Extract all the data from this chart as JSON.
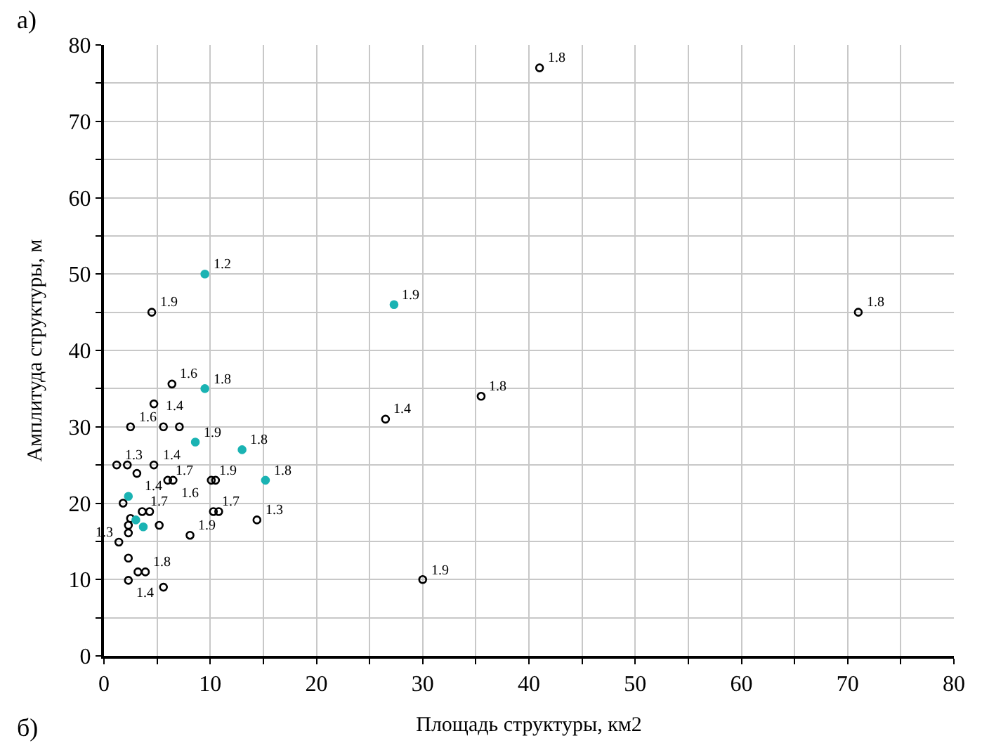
{
  "chart_data": {
    "type": "scatter",
    "xlabel": "Площадь структуры, км2",
    "ylabel": "Амплитуда структуры, м",
    "annotations": [
      "а)",
      "б)",
      {
        "text": "1.8",
        "x": 41,
        "y": 77
      },
      {
        "text": "1.8",
        "x": 71,
        "y": 45
      },
      {
        "text": "1.9",
        "x": 4.5,
        "y": 45
      },
      {
        "text": "1.4",
        "x": 26.5,
        "y": 31
      },
      {
        "text": "1.8",
        "x": 35.5,
        "y": 34
      },
      {
        "text": "1.9",
        "x": 30,
        "y": 10
      },
      {
        "text": "1.6",
        "x": 6.4,
        "y": 35.6
      },
      {
        "text": "1.4",
        "x": 4.7,
        "y": 33
      },
      {
        "text": "1.6",
        "x": 2.5,
        "y": 30
      },
      {
        "text": "1.3",
        "x": 1.2,
        "y": 25
      },
      {
        "text": "1.4",
        "x": 4.7,
        "y": 25
      },
      {
        "text": "1.4",
        "x": 3.1,
        "y": 23.9
      },
      {
        "text": "1.7",
        "x": 6.0,
        "y": 23
      },
      {
        "text": "1.6",
        "x": 6.5,
        "y": 23
      },
      {
        "text": "1.9",
        "x": 10.1,
        "y": 23
      },
      {
        "text": "1.7",
        "x": 3.6,
        "y": 18.9
      },
      {
        "text": "1.7",
        "x": 10.3,
        "y": 18.9
      },
      {
        "text": "1.9",
        "x": 8.1,
        "y": 15.8
      },
      {
        "text": "1.3",
        "x": 14.4,
        "y": 17.8
      },
      {
        "text": "1.3",
        "x": 1.4,
        "y": 14.9
      },
      {
        "text": "1.8",
        "x": 3.9,
        "y": 11
      },
      {
        "text": "1.4",
        "x": 2.3,
        "y": 9.9
      },
      {
        "text": "1.2",
        "x": 9.5,
        "y": 50
      },
      {
        "text": "1.9",
        "x": 27.3,
        "y": 46
      },
      {
        "text": "1.8",
        "x": 9.5,
        "y": 35
      },
      {
        "text": "1.9",
        "x": 8.6,
        "y": 28
      },
      {
        "text": "1.8",
        "x": 13.0,
        "y": 27
      },
      {
        "text": "1.8",
        "x": 15.2,
        "y": 23
      }
    ],
    "xlim": [
      0,
      80
    ],
    "ylim": [
      0,
      80
    ],
    "xticks": [
      0,
      {
        "value": 5,
        "label": null
      },
      10,
      {
        "value": 15,
        "label": null
      },
      20,
      {
        "value": 25,
        "label": null
      },
      30,
      {
        "value": 35,
        "label": null
      },
      40,
      {
        "value": 45,
        "label": null
      },
      50,
      {
        "value": 55,
        "label": null
      },
      60,
      {
        "value": 65,
        "label": null
      },
      70,
      {
        "value": 75,
        "label": null
      },
      80
    ],
    "yticks": [
      0,
      {
        "value": 5,
        "label": null
      },
      10,
      {
        "value": 15,
        "label": null
      },
      20,
      {
        "value": 25,
        "label": null
      },
      30,
      {
        "value": 35,
        "label": null
      },
      40,
      {
        "value": 45,
        "label": null
      },
      50,
      {
        "value": 55,
        "label": null
      },
      60,
      {
        "value": 65,
        "label": null
      },
      70,
      {
        "value": 75,
        "label": null
      },
      80
    ],
    "grid": true,
    "legend": false,
    "series": [
      {
        "color": "#000000",
        "marker": "circle-open",
        "x": [
          41,
          71,
          4.5,
          26.5,
          35.5,
          30,
          6.4,
          4.7,
          2.5,
          5.6,
          7.1,
          1.2,
          2.2,
          4.7,
          3.1,
          6.0,
          6.5,
          10.1,
          10.5,
          1.8,
          3.6,
          4.3,
          2.5,
          2.3,
          5.2,
          10.3,
          10.8,
          8.1,
          14.4,
          2.3,
          1.4,
          2.3,
          3.2,
          3.9,
          5.6,
          2.3
        ],
        "values": [
          77,
          45,
          45,
          31,
          34,
          10,
          35.6,
          33,
          30,
          30,
          30,
          25,
          25,
          25,
          23.9,
          23,
          23,
          23,
          23,
          20,
          18.9,
          18.9,
          18,
          17.1,
          17.1,
          18.9,
          18.9,
          15.8,
          17.8,
          16.1,
          14.9,
          12.8,
          11,
          11,
          9,
          9.9
        ]
      },
      {
        "color": "#1ab3b3",
        "marker": "circle",
        "x": [
          9.5,
          27.3,
          9.5,
          8.6,
          13.0,
          15.2,
          2.3,
          3.0,
          3.7
        ],
        "values": [
          50,
          46,
          35,
          28,
          27,
          23,
          20.9,
          17.8,
          16.9
        ]
      }
    ]
  }
}
